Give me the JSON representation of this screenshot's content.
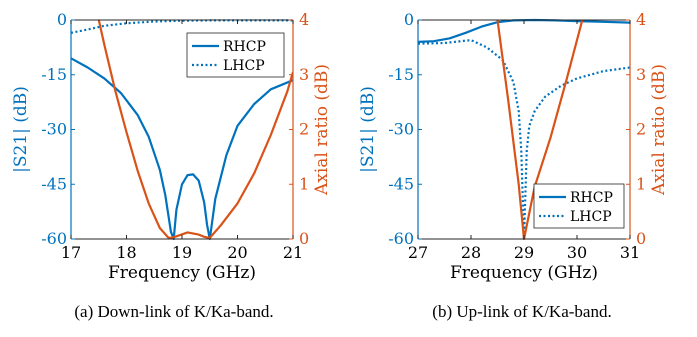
{
  "colors": {
    "blue": "#0072BD",
    "orange": "#D95319",
    "axis": "#262626"
  },
  "figure": {
    "captions": [
      "(a) Down-link of K/Ka-band.",
      "(b) Up-link of K/Ka-band."
    ]
  },
  "chart_data": [
    {
      "type": "line",
      "title": "",
      "xlabel": "Frequency (GHz)",
      "ylabel_left": "|S21| (dB)",
      "ylabel_right": "Axial ratio (dB)",
      "xlim": [
        17,
        21
      ],
      "ylim_left": [
        -60,
        0
      ],
      "ylim_right": [
        0,
        4
      ],
      "xticks": [
        17,
        18,
        19,
        20,
        21
      ],
      "yticks_left": [
        0,
        -15,
        -30,
        -45,
        -60
      ],
      "yticks_right": [
        4,
        3,
        2,
        1,
        0
      ],
      "grid": false,
      "legend_position": "top-right",
      "series": [
        {
          "name": "RHCP",
          "axis": "left",
          "style": "solid",
          "x": [
            17,
            17.3,
            17.6,
            17.9,
            18.2,
            18.4,
            18.6,
            18.7,
            18.8,
            18.85,
            18.9,
            19.0,
            19.1,
            19.2,
            19.3,
            19.4,
            19.45,
            19.5,
            19.6,
            19.8,
            20.0,
            20.3,
            20.6,
            21
          ],
          "y": [
            -10.5,
            -13,
            -16,
            -20,
            -26,
            -32,
            -41,
            -48,
            -58,
            -60,
            -52,
            -45,
            -42.5,
            -42.3,
            -44,
            -50,
            -56,
            -60,
            -49,
            -37,
            -29,
            -23,
            -19,
            -16.5
          ]
        },
        {
          "name": "LHCP",
          "axis": "left",
          "style": "dotted",
          "x": [
            17,
            17.3,
            17.6,
            18,
            18.5,
            19,
            19.5,
            20,
            20.5,
            21
          ],
          "y": [
            -3.5,
            -2.6,
            -1.6,
            -0.9,
            -0.4,
            -0.2,
            -0.1,
            -0.1,
            -0.1,
            -0.1
          ]
        },
        {
          "name": "",
          "axis": "right",
          "style": "solid",
          "x": [
            17.5,
            17.6,
            17.8,
            18.0,
            18.2,
            18.4,
            18.6,
            18.75,
            18.8,
            18.9,
            19.1,
            19.3,
            19.4,
            19.5,
            19.7,
            20.0,
            20.3,
            20.6,
            20.9,
            21.0
          ],
          "y": [
            4,
            3.55,
            2.7,
            1.95,
            1.25,
            0.65,
            0.2,
            0.03,
            0.02,
            0.05,
            0.12,
            0.08,
            0.04,
            0.02,
            0.25,
            0.65,
            1.2,
            1.9,
            2.7,
            3.05
          ]
        }
      ]
    },
    {
      "type": "line",
      "title": "",
      "xlabel": "Frequency (GHz)",
      "ylabel_left": "|S21| (dB)",
      "ylabel_right": "Axial ratio (dB)",
      "xlim": [
        27,
        31
      ],
      "ylim_left": [
        -60,
        0
      ],
      "ylim_right": [
        0,
        4
      ],
      "xticks": [
        27,
        28,
        29,
        30,
        31
      ],
      "yticks_left": [
        0,
        -15,
        -30,
        -45,
        -60
      ],
      "yticks_right": [
        4,
        3,
        2,
        1,
        0
      ],
      "grid": false,
      "legend_position": "bottom-right",
      "series": [
        {
          "name": "RHCP",
          "axis": "left",
          "style": "solid",
          "x": [
            27,
            27.3,
            27.6,
            27.9,
            28.2,
            28.5,
            28.8,
            29.2,
            29.6,
            30,
            30.5,
            31
          ],
          "y": [
            -6,
            -5.8,
            -5,
            -3.5,
            -1.8,
            -0.6,
            -0.1,
            0,
            -0.1,
            -0.3,
            -0.5,
            -0.7
          ]
        },
        {
          "name": "LHCP",
          "axis": "left",
          "style": "dotted",
          "x": [
            27,
            27.5,
            28,
            28.3,
            28.6,
            28.8,
            28.9,
            28.95,
            29.0,
            29.05,
            29.1,
            29.2,
            29.4,
            29.7,
            30,
            30.5,
            31
          ],
          "y": [
            -6.5,
            -6.3,
            -5.5,
            -7.5,
            -11,
            -17,
            -25,
            -36,
            -60,
            -36,
            -29,
            -25,
            -21,
            -18,
            -16,
            -14,
            -13
          ]
        },
        {
          "name": "",
          "axis": "right",
          "style": "solid",
          "x": [
            28.5,
            28.7,
            28.9,
            29.0,
            29.2,
            29.5,
            29.8,
            30.1
          ],
          "y": [
            4,
            2.55,
            1.0,
            0.0,
            0.95,
            1.85,
            2.9,
            4
          ]
        }
      ]
    }
  ]
}
